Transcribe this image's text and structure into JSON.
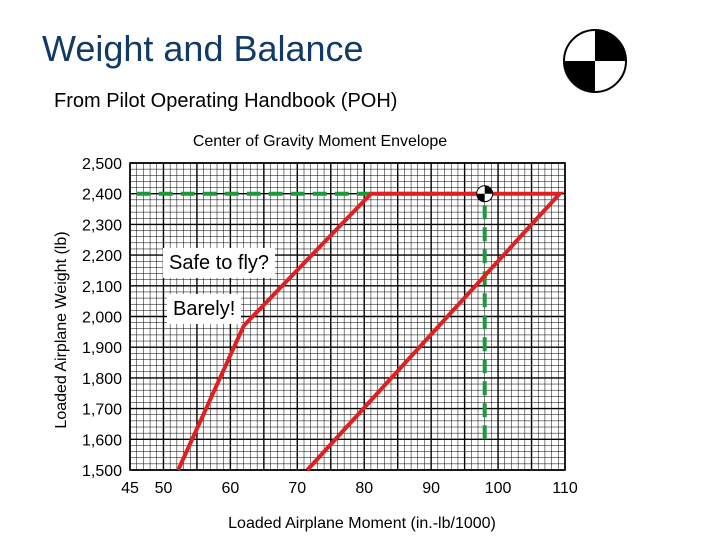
{
  "slide": {
    "title": "Weight and Balance",
    "subtitle": "From Pilot Operating Handbook (POH)",
    "icon": "cg-symbol-icon"
  },
  "chart_data": {
    "type": "line",
    "title": "Center of Gravity Moment Envelope",
    "xlabel": "Loaded Airplane Moment (in.-lb/1000)",
    "ylabel": "Loaded Airplane Weight (lb)",
    "xlim": [
      45,
      110
    ],
    "ylim": [
      1500,
      2500
    ],
    "x_ticks": [
      {
        "value": 45,
        "label": "45"
      },
      {
        "value": 50,
        "label": "50"
      },
      {
        "value": 60,
        "label": "60"
      },
      {
        "value": 70,
        "label": "70"
      },
      {
        "value": 80,
        "label": "80"
      },
      {
        "value": 90,
        "label": "90"
      },
      {
        "value": 100,
        "label": "100"
      },
      {
        "value": 110,
        "label": "110"
      }
    ],
    "y_ticks": [
      {
        "value": 1500,
        "label": "1,500"
      },
      {
        "value": 1600,
        "label": "1,600"
      },
      {
        "value": 1700,
        "label": "1,700"
      },
      {
        "value": 1800,
        "label": "1,800"
      },
      {
        "value": 1900,
        "label": "1,900"
      },
      {
        "value": 2000,
        "label": "2,000"
      },
      {
        "value": 2100,
        "label": "2,100"
      },
      {
        "value": 2200,
        "label": "2,200"
      },
      {
        "value": 2300,
        "label": "2,300"
      },
      {
        "value": 2400,
        "label": "2,400"
      },
      {
        "value": 2500,
        "label": "2,500"
      }
    ],
    "grid": true,
    "envelope": [
      {
        "x": 52.2,
        "y": 1500
      },
      {
        "x": 62.0,
        "y": 1970
      },
      {
        "x": 81.0,
        "y": 2400
      },
      {
        "x": 109.2,
        "y": 2400
      },
      {
        "x": 71.5,
        "y": 1500
      }
    ],
    "weight_guide": {
      "y": 2400,
      "x_from": 46,
      "x_to": 98.0
    },
    "moment_guide": {
      "x": 98.0,
      "y_from": 1600,
      "y_to": 2400
    },
    "cg_point": {
      "x": 98.0,
      "y": 2400
    },
    "annotations": [
      "Safe to fly?",
      "Barely!"
    ],
    "colors": {
      "envelope": "#e02020",
      "guides": "#1a9a3a",
      "grid": "#000000"
    }
  }
}
